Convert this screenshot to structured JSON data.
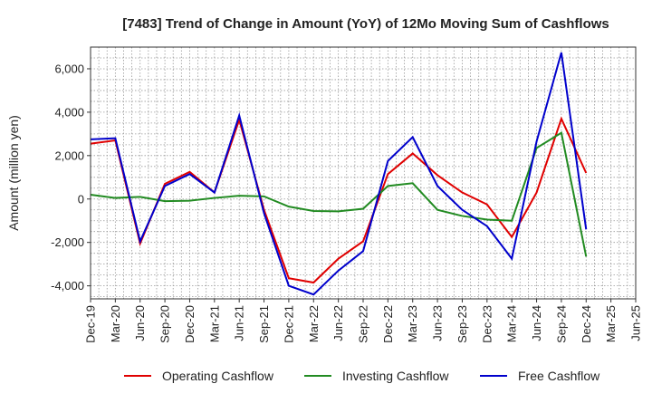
{
  "chart_data": {
    "type": "line",
    "title": "[7483]  Trend of Change in Amount (YoY) of 12Mo Moving Sum of Cashflows",
    "xlabel": "",
    "ylabel": "Amount (million yen)",
    "ylim": [
      -4600,
      7000
    ],
    "yticks": [
      -4000,
      -2000,
      0,
      2000,
      4000,
      6000
    ],
    "ytick_labels": [
      "-4,000",
      "-2,000",
      "0",
      "2,000",
      "4,000",
      "6,000"
    ],
    "grid": true,
    "legend_position": "bottom",
    "x_tick_labels": [
      "Dec-19",
      "Mar-20",
      "Jun-20",
      "Sep-20",
      "Dec-20",
      "Mar-21",
      "Jun-21",
      "Sep-21",
      "Dec-21",
      "Mar-22",
      "Jun-22",
      "Sep-22",
      "Dec-22",
      "Mar-23",
      "Jun-23",
      "Sep-23",
      "Dec-23",
      "Mar-24",
      "Jun-24",
      "Sep-24",
      "Dec-24",
      "Mar-25",
      "Jun-25"
    ],
    "categories": [
      "Dec-19",
      "Mar-20",
      "Jun-20",
      "Sep-20",
      "Dec-20",
      "Mar-21",
      "Jun-21",
      "Sep-21",
      "Dec-21",
      "Mar-22",
      "Jun-22",
      "Sep-22",
      "Dec-22",
      "Mar-23",
      "Jun-23",
      "Sep-23",
      "Dec-23",
      "Mar-24",
      "Jun-24",
      "Sep-24",
      "Dec-24"
    ],
    "series": [
      {
        "name": "Operating Cashflow",
        "color": "#e00000",
        "values": [
          2550,
          2700,
          -2050,
          700,
          1250,
          300,
          3650,
          -500,
          -3650,
          -3850,
          -2750,
          -1950,
          1150,
          2100,
          1100,
          300,
          -250,
          -1750,
          300,
          3700,
          1200
        ]
      },
      {
        "name": "Investing Cashflow",
        "color": "#228b22",
        "values": [
          200,
          50,
          100,
          -100,
          -80,
          50,
          150,
          120,
          -350,
          -550,
          -570,
          -450,
          600,
          730,
          -500,
          -780,
          -950,
          -1000,
          2350,
          3050,
          -2650
        ]
      },
      {
        "name": "Free Cashflow",
        "color": "#0000cc",
        "values": [
          2750,
          2800,
          -1950,
          600,
          1150,
          300,
          3850,
          -650,
          -4000,
          -4400,
          -3300,
          -2400,
          1750,
          2850,
          600,
          -500,
          -1250,
          -2750,
          2650,
          6750,
          -1400
        ]
      }
    ]
  }
}
